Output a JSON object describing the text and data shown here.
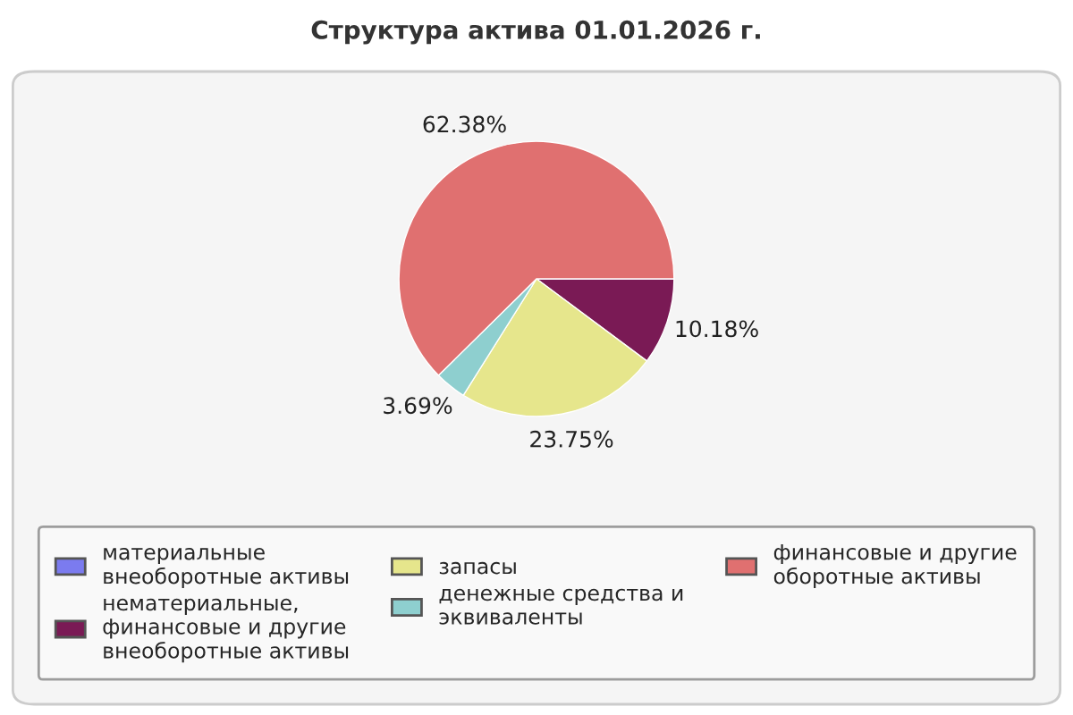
{
  "chart_data": {
    "type": "pie",
    "title": "Структура актива 01.01.2026 г.",
    "categories": [
      "материальные внеоборотные активы",
      "нематериальные, финансовые и другие внеоборотные активы",
      "запасы",
      "денежные средства и эквиваленты",
      "финансовые и другие оборотные активы"
    ],
    "values": [
      0,
      10.18,
      23.75,
      3.69,
      62.38
    ],
    "value_labels": [
      null,
      "10.18%",
      "23.75%",
      "3.69%",
      "62.38%"
    ],
    "colors": [
      "#7b7bef",
      "#7a1a55",
      "#e6e68c",
      "#8ecfcf",
      "#e07070"
    ],
    "legend": "bottom"
  }
}
